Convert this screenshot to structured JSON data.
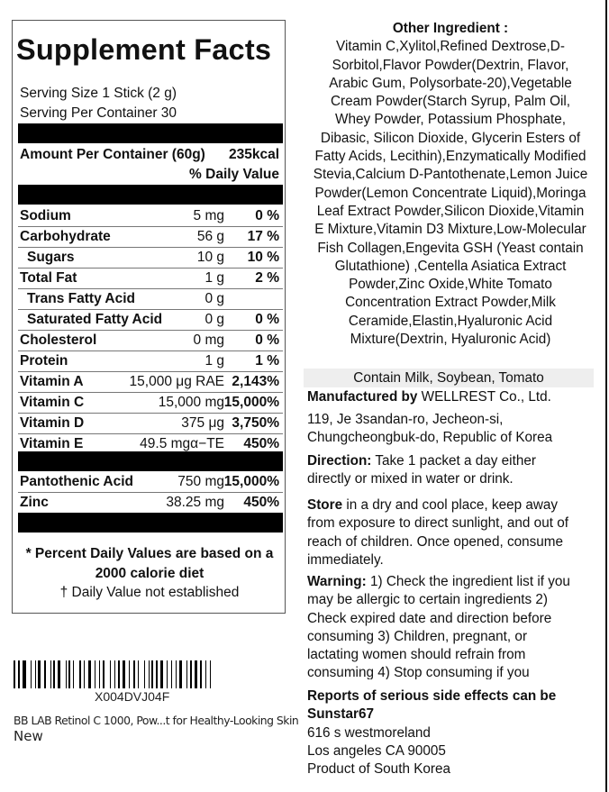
{
  "facts": {
    "title": "Supplement Facts",
    "serving_size": "Serving Size 1 Stick (2 g)",
    "servings_per_container": "Serving Per Container 30",
    "amount_label": "Amount Per Container (60g)",
    "calories": "235kcal",
    "dv_header": "% Daily Value",
    "rows": [
      {
        "name": "Sodium",
        "qty": "5 mg",
        "dv": "0 %"
      },
      {
        "name": "Carbohydrate",
        "qty": "56 g",
        "dv": "17 %"
      },
      {
        "name": "Sugars",
        "qty": "10 g",
        "dv": "10 %"
      },
      {
        "name": "Total Fat",
        "qty": "1 g",
        "dv": "2 %"
      },
      {
        "name": "Trans Fatty Acid",
        "qty": "0 g",
        "dv": ""
      },
      {
        "name": "Saturated Fatty Acid",
        "qty": "0 g",
        "dv": "0 %"
      },
      {
        "name": "Cholesterol",
        "qty": "0 mg",
        "dv": "0 %"
      },
      {
        "name": "Protein",
        "qty": "1 g",
        "dv": "1 %"
      },
      {
        "name": "Vitamin A",
        "qty": "15,000 μg RAE",
        "dv": "2,143%"
      },
      {
        "name": "Vitamin C",
        "qty": "15,000 mg",
        "dv": "15,000%"
      },
      {
        "name": "Vitamin D",
        "qty": "375 μg",
        "dv": "3,750%"
      },
      {
        "name": "Vitamin E",
        "qty": "49.5 mgα−TE",
        "dv": "450%"
      }
    ],
    "rows2": [
      {
        "name": "Pantothenic Acid",
        "qty": "750 mg",
        "dv": "15,000%"
      },
      {
        "name": "Zinc",
        "qty": "38.25 mg",
        "dv": "450%"
      }
    ],
    "footnote_1": "* Percent Daily Values are based on a",
    "footnote_2": "2000 calorie diet",
    "footnote_3": "† Daily Value not established"
  },
  "label": {
    "barcode_text": "X004DVJ04F",
    "product_name": "BB LAB Retinol C 1000, Pow...t for Healthy-Looking Skin",
    "condition": "New"
  },
  "ingredients": {
    "heading": "Other Ingredient :",
    "lines": [
      "Vitamin C,Xylitol,Refined Dextrose,D-",
      "Sorbitol,Flavor Powder(Dextrin, Flavor,",
      "Arabic Gum, Polysorbate-20),Vegetable",
      "Cream Powder(Starch Syrup, Palm Oil,",
      "Whey Powder, Potassium Phosphate,",
      "Dibasic, Silicon Dioxide, Glycerin Esters of",
      "Fatty Acids, Lecithin),Enzymatically Modified",
      "Stevia,Calcium D-Pantothenate,Lemon Juice",
      "Powder(Lemon Concentrate Liquid),Moringa",
      "Leaf Extract Powder,Silicon Dioxide,Vitamin",
      "E Mixture,Vitamin D3 Mixture,Low-Molecular",
      "Fish Collagen,Engevita GSH (Yeast contain",
      "Glutathione) ,Centella Asiatica Extract",
      "Powder,Zinc Oxide,White Tomato",
      "Concentration Extract Powder,Milk",
      "Ceramide,Elastin,Hyaluronic Acid",
      "Mixture(Dextrin, Hyaluronic Acid)"
    ]
  },
  "allergen": "Contain Milk, Soybean, Tomato",
  "manufacturer": {
    "label": "Manufactured by",
    "name": " WELLREST Co., Ltd.",
    "address_1": "119, Je 3sandan-ro, Jecheon-si,",
    "address_2": "Chungcheongbuk-do, Republic of Korea"
  },
  "direction": {
    "label": "Direction:",
    "line_1": " Take 1 packet a day either",
    "line_2": "directly or mixed in water or drink."
  },
  "store": {
    "label": "Store",
    "line_1": " in a dry and cool place, keep away",
    "line_2": "from exposure to direct sunlight, and out of",
    "line_3": "reach of children. Once opened, consume",
    "line_4": "immediately."
  },
  "warning": {
    "label": "Warning:",
    "line_1": " 1) Check the ingredient list if you",
    "line_2": "may be allergic to certain ingredients 2)",
    "line_3": "Check expired date and direction before",
    "line_4": "consuming 3) Children, pregnant, or",
    "line_5": "lactating women should refrain from",
    "line_6": "consuming 4) Stop consuming if you"
  },
  "reports": {
    "line_1": "Reports of serious side effects can be",
    "line_2": "Sunstar67",
    "line_3": "616 s westmoreland",
    "line_4": "Los angeles CA 90005",
    "line_5": "Product of South Korea"
  }
}
